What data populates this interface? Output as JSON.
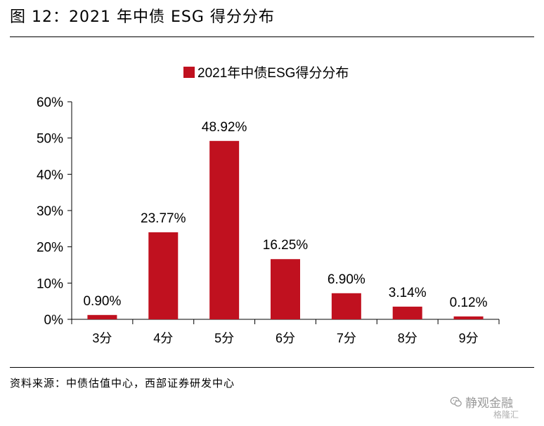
{
  "figure": {
    "title": "图 12：2021 年中债 ESG 得分分布",
    "source": "资料来源：中债估值中心，西部证券研发中心"
  },
  "watermark": {
    "name": "静观金融",
    "sub": "格隆汇",
    "icon": "wechat-icon"
  },
  "colors": {
    "bar": "#C0111F",
    "axis": "#000000"
  },
  "chart_data": {
    "type": "bar",
    "title": "",
    "legend": {
      "position": "top-center",
      "entries": [
        "2021年中债ESG得分分布"
      ]
    },
    "categories": [
      "3分",
      "4分",
      "5分",
      "6分",
      "7分",
      "8分",
      "9分"
    ],
    "series": [
      {
        "name": "2021年中债ESG得分分布",
        "values": [
          0.9,
          23.77,
          48.92,
          16.25,
          6.9,
          3.14,
          0.12
        ]
      }
    ],
    "data_labels": [
      "0.90%",
      "23.77%",
      "48.92%",
      "16.25%",
      "6.90%",
      "3.14%",
      "0.12%"
    ],
    "bar_heights": [
      1.2,
      24.0,
      49.2,
      16.6,
      7.2,
      3.5,
      0.8
    ],
    "y_ticks": [
      "0%",
      "10%",
      "20%",
      "30%",
      "40%",
      "50%",
      "60%"
    ],
    "ylim": [
      0,
      60
    ],
    "xlabel": "",
    "ylabel": "",
    "grid": false
  }
}
